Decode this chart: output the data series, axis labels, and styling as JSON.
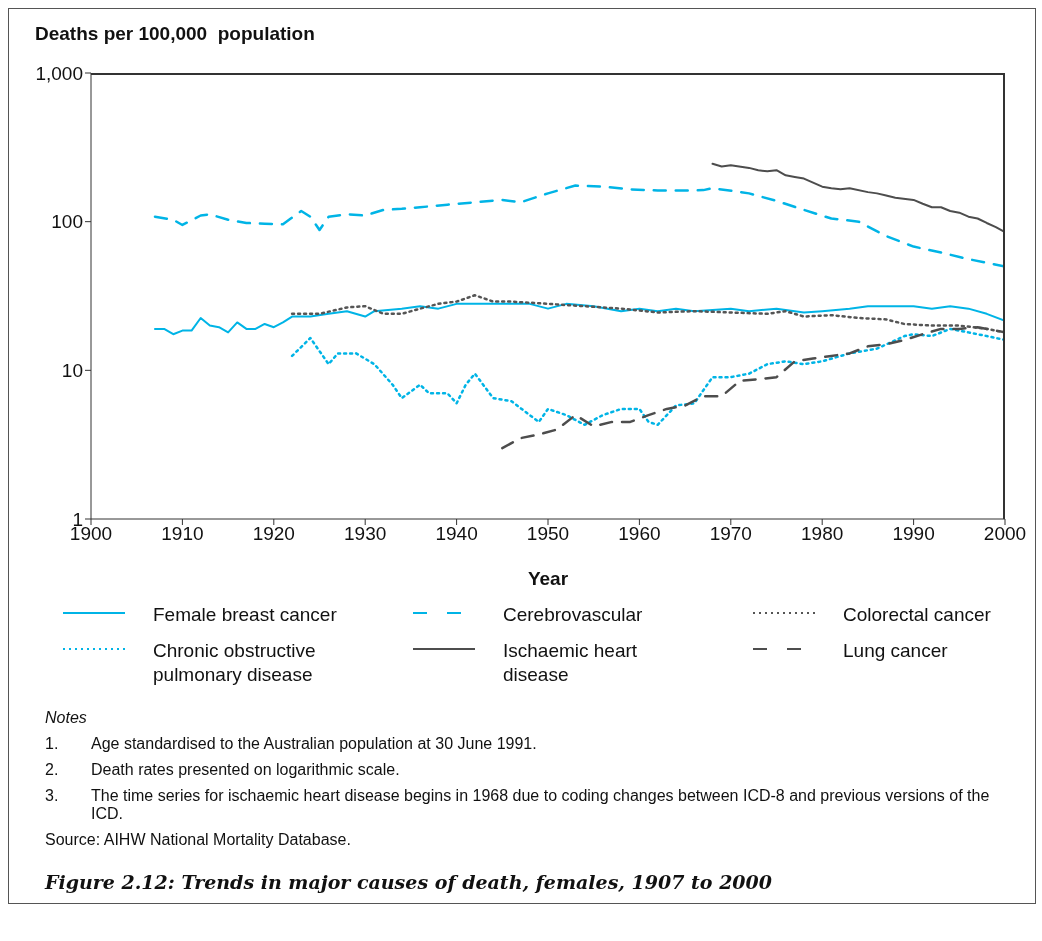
{
  "chart_data": {
    "type": "line",
    "title": "Figure 2.12: Trends in major causes of death, females, 1907 to 2000",
    "ylabel": "Deaths per 100,000  population",
    "xlabel": "Year",
    "log": "y",
    "grid": false,
    "legend": "bottom",
    "marker": "none",
    "xlim": [
      1900,
      2000
    ],
    "xticks": [
      1900,
      1910,
      1920,
      1930,
      1940,
      1950,
      1960,
      1970,
      1980,
      1990,
      2000
    ],
    "ylim": [
      1,
      1000
    ],
    "yticks": [
      1,
      10,
      100,
      {
        "value": 1000,
        "label": "1,000"
      }
    ],
    "series": [
      {
        "name": "Female breast cancer",
        "color": "#00b4e6",
        "line_style": "solid",
        "x": [
          1907,
          1908,
          1909,
          1910,
          1911,
          1912,
          1913,
          1914,
          1915,
          1916,
          1917,
          1918,
          1919,
          1920,
          1921,
          1922,
          1924,
          1926,
          1928,
          1930,
          1931,
          1934,
          1936,
          1938,
          1940,
          1942,
          1944,
          1946,
          1948,
          1950,
          1952,
          1955,
          1958,
          1960,
          1962,
          1964,
          1966,
          1968,
          1970,
          1972,
          1975,
          1978,
          1980,
          1983,
          1985,
          1988,
          1990,
          1992,
          1994,
          1996,
          1998,
          2000
        ],
        "values": [
          19,
          19,
          17.5,
          18.5,
          18.5,
          22.5,
          20,
          19.5,
          18,
          21,
          19,
          19,
          20.5,
          19.5,
          21,
          23,
          23,
          24,
          25,
          23,
          25,
          26,
          27,
          26,
          28,
          28,
          28,
          28,
          28,
          26,
          28,
          27,
          25,
          26,
          25,
          26,
          25,
          25.5,
          26,
          25,
          26,
          24.5,
          25,
          26,
          27,
          27,
          27,
          26,
          27,
          26,
          24,
          21.5
        ]
      },
      {
        "name": "Cerebrovascular",
        "color": "#00b4e6",
        "line_style": "dashed",
        "x": [
          1907,
          1909,
          1910,
          1912,
          1913,
          1915,
          1917,
          1919,
          1921,
          1923,
          1924,
          1925,
          1926,
          1928,
          1930,
          1932,
          1934,
          1936,
          1939,
          1942,
          1945,
          1947,
          1950,
          1953,
          1956,
          1959,
          1962,
          1965,
          1967,
          1968,
          1972,
          1975,
          1978,
          1981,
          1984,
          1987,
          1990,
          1993,
          1996,
          2000
        ],
        "values": [
          108,
          103,
          95,
          110,
          112,
          103,
          98,
          97,
          96,
          118,
          108,
          88,
          108,
          112,
          110,
          120,
          122,
          125,
          130,
          135,
          140,
          135,
          155,
          175,
          172,
          165,
          162,
          162,
          163,
          168,
          155,
          138,
          120,
          105,
          100,
          80,
          68,
          62,
          56,
          50
        ]
      },
      {
        "name": "Colorectal cancer",
        "color": "#555555",
        "line_style": "dotted",
        "x": [
          1922,
          1925,
          1928,
          1930,
          1932,
          1934,
          1936,
          1938,
          1940,
          1942,
          1944,
          1946,
          1950,
          1954,
          1958,
          1962,
          1966,
          1970,
          1974,
          1976,
          1978,
          1981,
          1984,
          1987,
          1989,
          1992,
          1995,
          1998,
          2000
        ],
        "values": [
          24,
          24,
          26.5,
          27,
          24,
          24,
          26,
          28,
          29,
          32,
          29,
          29,
          28,
          27,
          26,
          24.5,
          25,
          24.5,
          24,
          25,
          23,
          23.5,
          22.5,
          22,
          20.5,
          20,
          20,
          19,
          18
        ]
      },
      {
        "name": "Chronic obstructive pulmonary disease",
        "color": "#00b4e6",
        "line_style": "dotted",
        "x": [
          1922,
          1924,
          1926,
          1927,
          1929,
          1931,
          1933,
          1934,
          1936,
          1937,
          1939,
          1940,
          1941,
          1942,
          1944,
          1946,
          1948,
          1949,
          1950,
          1952,
          1954,
          1956,
          1958,
          1960,
          1961,
          1962,
          1964,
          1966,
          1968,
          1970,
          1972,
          1974,
          1976,
          1978,
          1980,
          1983,
          1986,
          1989,
          1990,
          1992,
          1994,
          1996,
          1998,
          2000
        ],
        "values": [
          12.5,
          16.5,
          11,
          13,
          13,
          11,
          8,
          6.5,
          8,
          7,
          7,
          6,
          8,
          9.5,
          6.5,
          6.2,
          5,
          4.5,
          5.5,
          5,
          4.3,
          5,
          5.5,
          5.5,
          4.5,
          4.3,
          5.8,
          6,
          9,
          9,
          9.5,
          11,
          11.5,
          11,
          11.5,
          13,
          14,
          17,
          17.5,
          17,
          19,
          18,
          17,
          16
        ]
      },
      {
        "name": "Ischaemic heart disease",
        "color": "#4d4d4d",
        "line_style": "solid",
        "x": [
          1968,
          1969,
          1970,
          1972,
          1973,
          1974,
          1975,
          1976,
          1977,
          1978,
          1980,
          1981,
          1982,
          1983,
          1985,
          1986,
          1987,
          1988,
          1990,
          1991,
          1992,
          1993,
          1994,
          1995,
          1996,
          1997,
          1998,
          1999,
          2000
        ],
        "values": [
          245,
          235,
          240,
          230,
          222,
          218,
          222,
          205,
          200,
          195,
          172,
          168,
          165,
          168,
          158,
          155,
          150,
          145,
          140,
          132,
          125,
          125,
          118,
          115,
          108,
          105,
          98,
          92,
          85
        ]
      },
      {
        "name": "Lung cancer",
        "color": "#4d4d4d",
        "line_style": "dashed",
        "x": [
          1945,
          1947,
          1949,
          1951,
          1953,
          1955,
          1957,
          1959,
          1961,
          1963,
          1965,
          1967,
          1969,
          1971,
          1973,
          1975,
          1977,
          1979,
          1981,
          1983,
          1985,
          1987,
          1989,
          1991,
          1993,
          1995,
          1997,
          2000
        ],
        "values": [
          3,
          3.5,
          3.7,
          4,
          5,
          4.2,
          4.5,
          4.5,
          5,
          5.5,
          5.8,
          6.7,
          6.7,
          8.5,
          8.7,
          9,
          11.5,
          12,
          12.5,
          13,
          14.5,
          15,
          16,
          17.5,
          19,
          19,
          19.5,
          18
        ]
      }
    ],
    "annotations": [
      "Notes",
      "1. Age standardised to the Australian population at 30 June 1991.",
      "2. Death rates presented on logarithmic scale.",
      "3. The time series for ischaemic heart disease begins in 1968 due to coding changes between ICD-8 and previous versions of the ICD.",
      "Source: AIHW National Mortality Database."
    ]
  }
}
